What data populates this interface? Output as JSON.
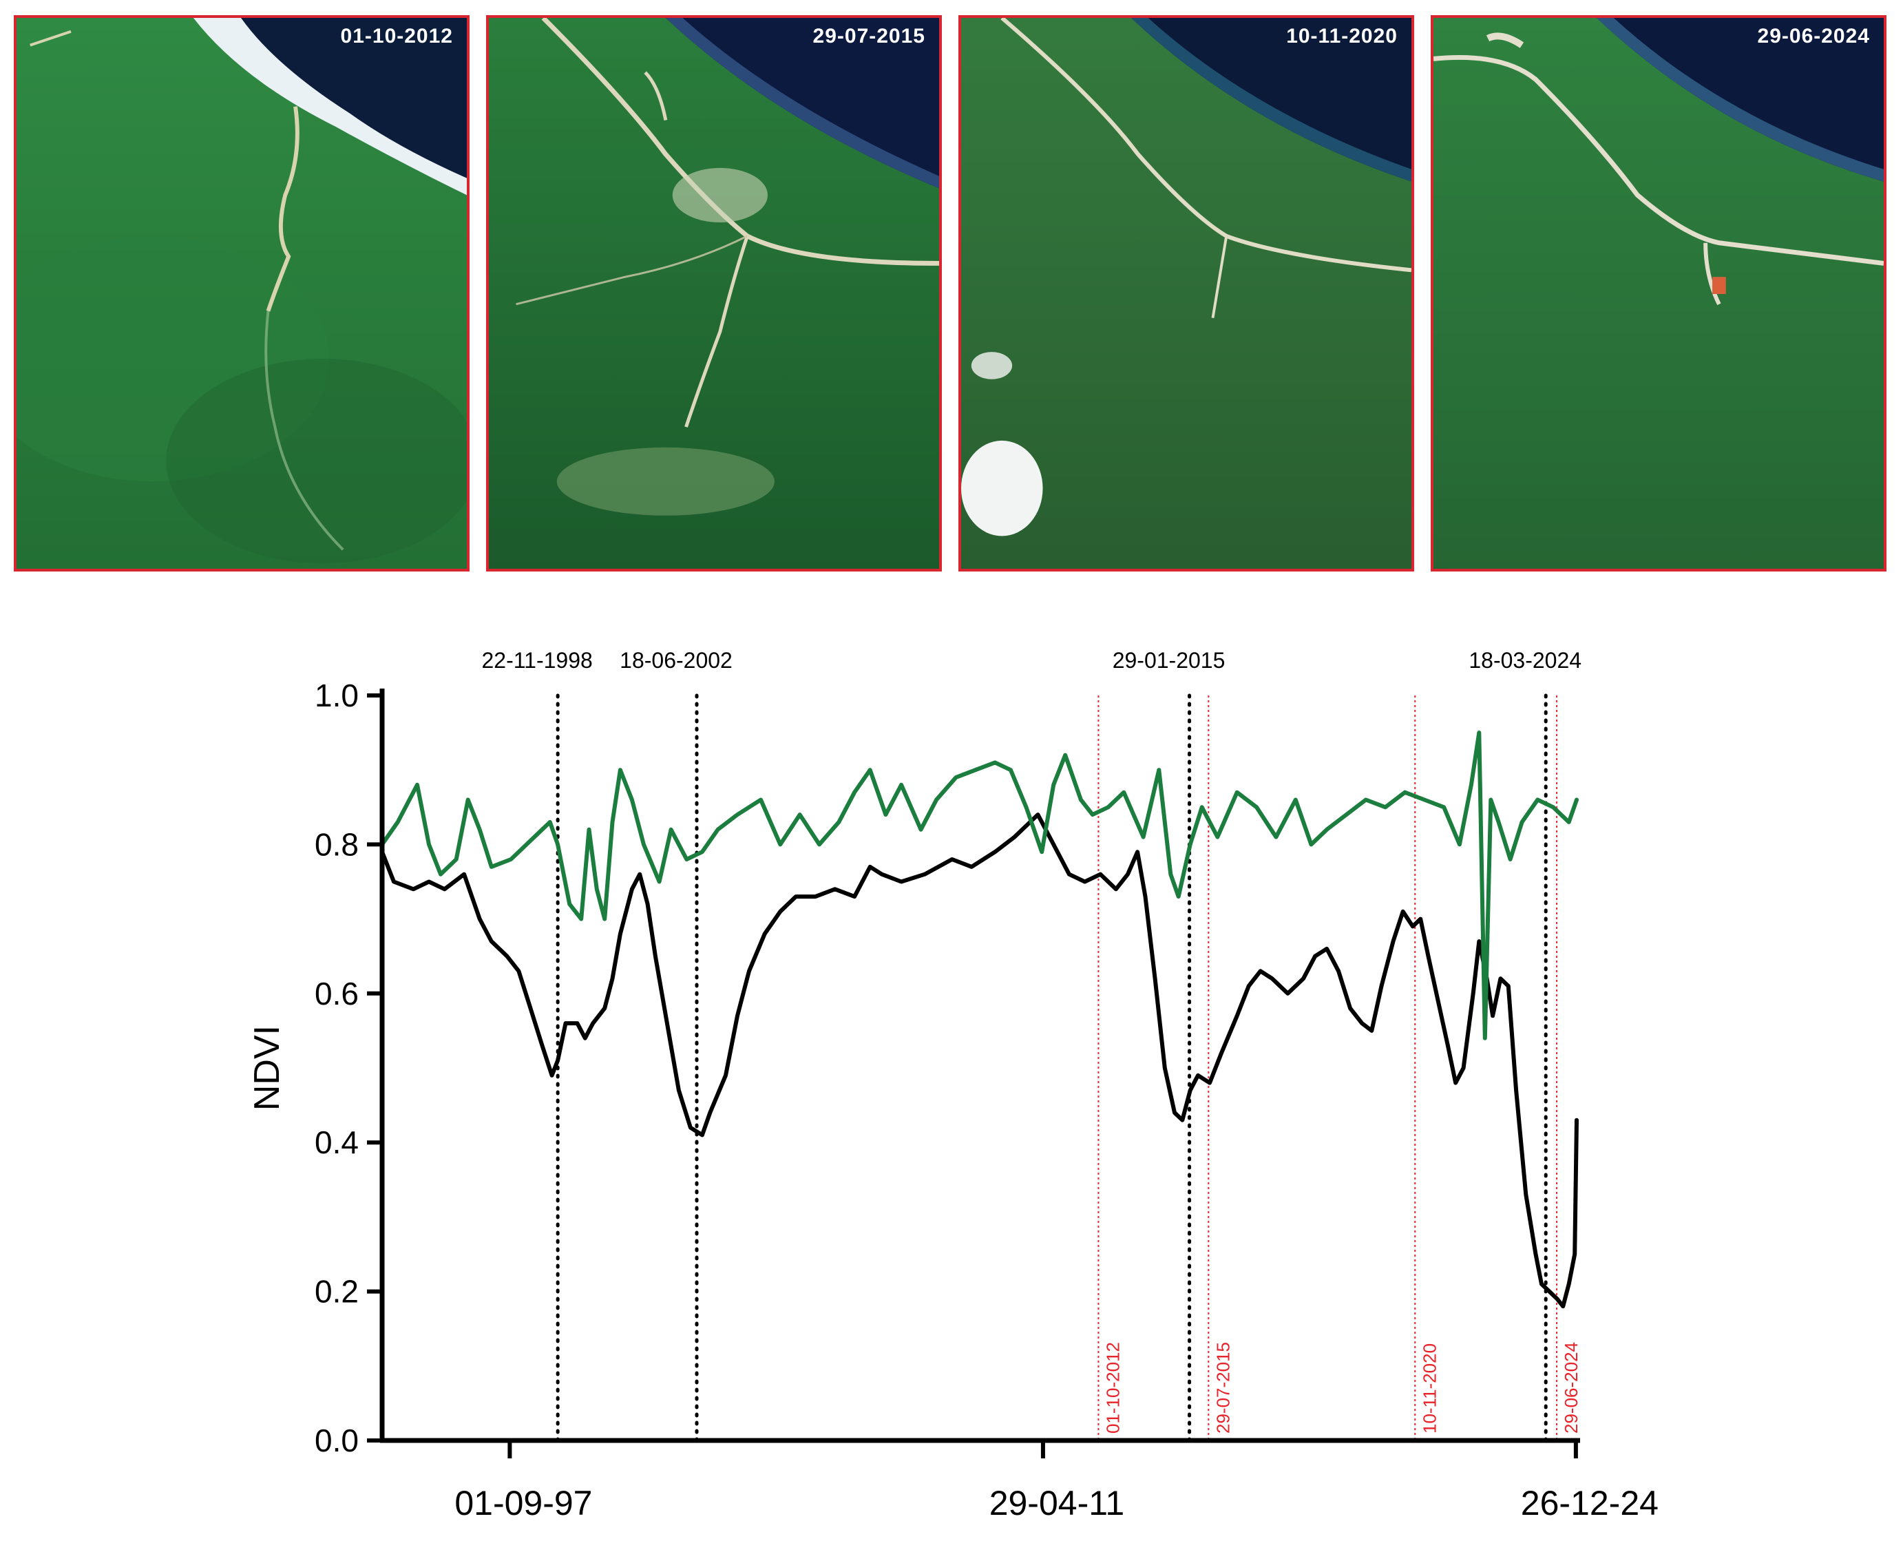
{
  "panels": [
    {
      "date": "01-10-2012",
      "water": "#0b1d3a",
      "coast": "#eaf1f5",
      "forest": "#2b7a3c",
      "road_color": "#d8d4b0"
    },
    {
      "date": "29-07-2015",
      "water": "#0d1a3f",
      "coast": "#2b4a7a",
      "forest": "#1f6a32",
      "road_color": "#ddd7bd"
    },
    {
      "date": "10-11-2020",
      "water": "#0a1a38",
      "coast": "#1e4f6e",
      "forest": "#2c6b34",
      "road_color": "#e1dcc5"
    },
    {
      "date": "29-06-2024",
      "water": "#0b1a3c",
      "coast": "#2b557c",
      "forest": "#2a7337",
      "road_color": "#e4dfcd"
    }
  ],
  "chart_data": {
    "type": "line",
    "ylabel": "NDVI",
    "ylim": [
      0.0,
      1.0
    ],
    "yticks": [
      "0.0",
      "0.2",
      "0.4",
      "0.6",
      "0.8",
      "1.0"
    ],
    "x_ticks": [
      "01-09-97",
      "29-04-11",
      "26-12-24"
    ],
    "x_range": [
      1994.4,
      2025.0
    ],
    "x_tick_positions": [
      1997.67,
      2011.33,
      2024.98
    ],
    "series": [
      {
        "color": "#000000",
        "points": [
          [
            1994.4,
            0.79
          ],
          [
            1994.7,
            0.75
          ],
          [
            1995.2,
            0.74
          ],
          [
            1995.6,
            0.75
          ],
          [
            1996.0,
            0.74
          ],
          [
            1996.5,
            0.76
          ],
          [
            1996.9,
            0.7
          ],
          [
            1997.2,
            0.67
          ],
          [
            1997.6,
            0.65
          ],
          [
            1997.9,
            0.63
          ],
          [
            1998.2,
            0.58
          ],
          [
            1998.5,
            0.53
          ],
          [
            1998.75,
            0.49
          ],
          [
            1998.9,
            0.51
          ],
          [
            1999.1,
            0.56
          ],
          [
            1999.4,
            0.56
          ],
          [
            1999.6,
            0.54
          ],
          [
            1999.8,
            0.56
          ],
          [
            2000.1,
            0.58
          ],
          [
            2000.3,
            0.62
          ],
          [
            2000.5,
            0.68
          ],
          [
            2000.8,
            0.74
          ],
          [
            2001.0,
            0.76
          ],
          [
            2001.2,
            0.72
          ],
          [
            2001.4,
            0.65
          ],
          [
            2001.7,
            0.56
          ],
          [
            2002.0,
            0.47
          ],
          [
            2002.3,
            0.42
          ],
          [
            2002.6,
            0.41
          ],
          [
            2002.8,
            0.44
          ],
          [
            2003.2,
            0.49
          ],
          [
            2003.5,
            0.57
          ],
          [
            2003.8,
            0.63
          ],
          [
            2004.2,
            0.68
          ],
          [
            2004.6,
            0.71
          ],
          [
            2005.0,
            0.73
          ],
          [
            2005.5,
            0.73
          ],
          [
            2006.0,
            0.74
          ],
          [
            2006.5,
            0.73
          ],
          [
            2006.9,
            0.77
          ],
          [
            2007.2,
            0.76
          ],
          [
            2007.7,
            0.75
          ],
          [
            2008.3,
            0.76
          ],
          [
            2009.0,
            0.78
          ],
          [
            2009.5,
            0.77
          ],
          [
            2010.1,
            0.79
          ],
          [
            2010.6,
            0.81
          ],
          [
            2011.2,
            0.84
          ],
          [
            2011.6,
            0.8
          ],
          [
            2012.0,
            0.76
          ],
          [
            2012.4,
            0.75
          ],
          [
            2012.8,
            0.76
          ],
          [
            2013.2,
            0.74
          ],
          [
            2013.5,
            0.76
          ],
          [
            2013.75,
            0.79
          ],
          [
            2013.95,
            0.73
          ],
          [
            2014.2,
            0.62
          ],
          [
            2014.45,
            0.5
          ],
          [
            2014.7,
            0.44
          ],
          [
            2014.9,
            0.43
          ],
          [
            2015.1,
            0.47
          ],
          [
            2015.3,
            0.49
          ],
          [
            2015.6,
            0.48
          ],
          [
            2015.9,
            0.52
          ],
          [
            2016.3,
            0.57
          ],
          [
            2016.6,
            0.61
          ],
          [
            2016.9,
            0.63
          ],
          [
            2017.2,
            0.62
          ],
          [
            2017.6,
            0.6
          ],
          [
            2018.0,
            0.62
          ],
          [
            2018.3,
            0.65
          ],
          [
            2018.6,
            0.66
          ],
          [
            2018.9,
            0.63
          ],
          [
            2019.2,
            0.58
          ],
          [
            2019.5,
            0.56
          ],
          [
            2019.75,
            0.55
          ],
          [
            2020.0,
            0.61
          ],
          [
            2020.3,
            0.67
          ],
          [
            2020.55,
            0.71
          ],
          [
            2020.8,
            0.69
          ],
          [
            2021.0,
            0.7
          ],
          [
            2021.2,
            0.65
          ],
          [
            2021.45,
            0.59
          ],
          [
            2021.7,
            0.53
          ],
          [
            2021.9,
            0.48
          ],
          [
            2022.1,
            0.5
          ],
          [
            2022.35,
            0.6
          ],
          [
            2022.5,
            0.67
          ],
          [
            2022.7,
            0.62
          ],
          [
            2022.85,
            0.57
          ],
          [
            2023.05,
            0.62
          ],
          [
            2023.25,
            0.61
          ],
          [
            2023.45,
            0.47
          ],
          [
            2023.7,
            0.33
          ],
          [
            2023.95,
            0.25
          ],
          [
            2024.1,
            0.21
          ],
          [
            2024.3,
            0.2
          ],
          [
            2024.5,
            0.19
          ],
          [
            2024.65,
            0.18
          ],
          [
            2024.8,
            0.21
          ],
          [
            2024.95,
            0.25
          ],
          [
            2025.0,
            0.43
          ]
        ]
      },
      {
        "color": "#1b7d3e",
        "points": [
          [
            1994.4,
            0.8
          ],
          [
            1994.8,
            0.83
          ],
          [
            1995.3,
            0.88
          ],
          [
            1995.6,
            0.8
          ],
          [
            1995.9,
            0.76
          ],
          [
            1996.3,
            0.78
          ],
          [
            1996.6,
            0.86
          ],
          [
            1996.9,
            0.82
          ],
          [
            1997.2,
            0.77
          ],
          [
            1997.7,
            0.78
          ],
          [
            1998.3,
            0.81
          ],
          [
            1998.7,
            0.83
          ],
          [
            1998.9,
            0.8
          ],
          [
            1999.2,
            0.72
          ],
          [
            1999.5,
            0.7
          ],
          [
            1999.7,
            0.82
          ],
          [
            1999.9,
            0.74
          ],
          [
            2000.1,
            0.7
          ],
          [
            2000.3,
            0.83
          ],
          [
            2000.5,
            0.9
          ],
          [
            2000.8,
            0.86
          ],
          [
            2001.1,
            0.8
          ],
          [
            2001.5,
            0.75
          ],
          [
            2001.8,
            0.82
          ],
          [
            2002.2,
            0.78
          ],
          [
            2002.6,
            0.79
          ],
          [
            2003.0,
            0.82
          ],
          [
            2003.5,
            0.84
          ],
          [
            2004.1,
            0.86
          ],
          [
            2004.6,
            0.8
          ],
          [
            2005.1,
            0.84
          ],
          [
            2005.6,
            0.8
          ],
          [
            2006.1,
            0.83
          ],
          [
            2006.5,
            0.87
          ],
          [
            2006.9,
            0.9
          ],
          [
            2007.3,
            0.84
          ],
          [
            2007.7,
            0.88
          ],
          [
            2008.2,
            0.82
          ],
          [
            2008.6,
            0.86
          ],
          [
            2009.1,
            0.89
          ],
          [
            2009.6,
            0.9
          ],
          [
            2010.1,
            0.91
          ],
          [
            2010.5,
            0.9
          ],
          [
            2010.9,
            0.85
          ],
          [
            2011.3,
            0.79
          ],
          [
            2011.6,
            0.88
          ],
          [
            2011.9,
            0.92
          ],
          [
            2012.3,
            0.86
          ],
          [
            2012.6,
            0.84
          ],
          [
            2013.0,
            0.85
          ],
          [
            2013.4,
            0.87
          ],
          [
            2013.9,
            0.81
          ],
          [
            2014.3,
            0.9
          ],
          [
            2014.6,
            0.76
          ],
          [
            2014.8,
            0.73
          ],
          [
            2015.1,
            0.8
          ],
          [
            2015.4,
            0.85
          ],
          [
            2015.8,
            0.81
          ],
          [
            2016.3,
            0.87
          ],
          [
            2016.8,
            0.85
          ],
          [
            2017.3,
            0.81
          ],
          [
            2017.8,
            0.86
          ],
          [
            2018.2,
            0.8
          ],
          [
            2018.6,
            0.82
          ],
          [
            2019.1,
            0.84
          ],
          [
            2019.6,
            0.86
          ],
          [
            2020.1,
            0.85
          ],
          [
            2020.6,
            0.87
          ],
          [
            2021.1,
            0.86
          ],
          [
            2021.6,
            0.85
          ],
          [
            2022.0,
            0.8
          ],
          [
            2022.3,
            0.88
          ],
          [
            2022.5,
            0.95
          ],
          [
            2022.65,
            0.54
          ],
          [
            2022.8,
            0.86
          ],
          [
            2023.0,
            0.83
          ],
          [
            2023.3,
            0.78
          ],
          [
            2023.6,
            0.83
          ],
          [
            2024.0,
            0.86
          ],
          [
            2024.4,
            0.85
          ],
          [
            2024.8,
            0.83
          ],
          [
            2025.0,
            0.86
          ]
        ]
      }
    ],
    "event_lines": [
      {
        "date": "22-11-1998",
        "x": 1998.9,
        "style": "dotted",
        "color": "#000000"
      },
      {
        "date": "18-06-2002",
        "x": 2002.46,
        "style": "dotted",
        "color": "#000000"
      },
      {
        "date": "29-01-2015",
        "x": 2015.08,
        "style": "dotted",
        "color": "#000000"
      },
      {
        "date": "18-03-2024",
        "x": 2024.21,
        "style": "dotted",
        "color": "#000000"
      }
    ],
    "image_lines": [
      {
        "date": "01-10-2012",
        "x": 2012.75,
        "color": "#e8232a"
      },
      {
        "date": "29-07-2015",
        "x": 2015.57,
        "color": "#e8232a"
      },
      {
        "date": "10-11-2020",
        "x": 2020.86,
        "color": "#e8232a"
      },
      {
        "date": "29-06-2024",
        "x": 2024.49,
        "color": "#e8232a"
      }
    ]
  }
}
